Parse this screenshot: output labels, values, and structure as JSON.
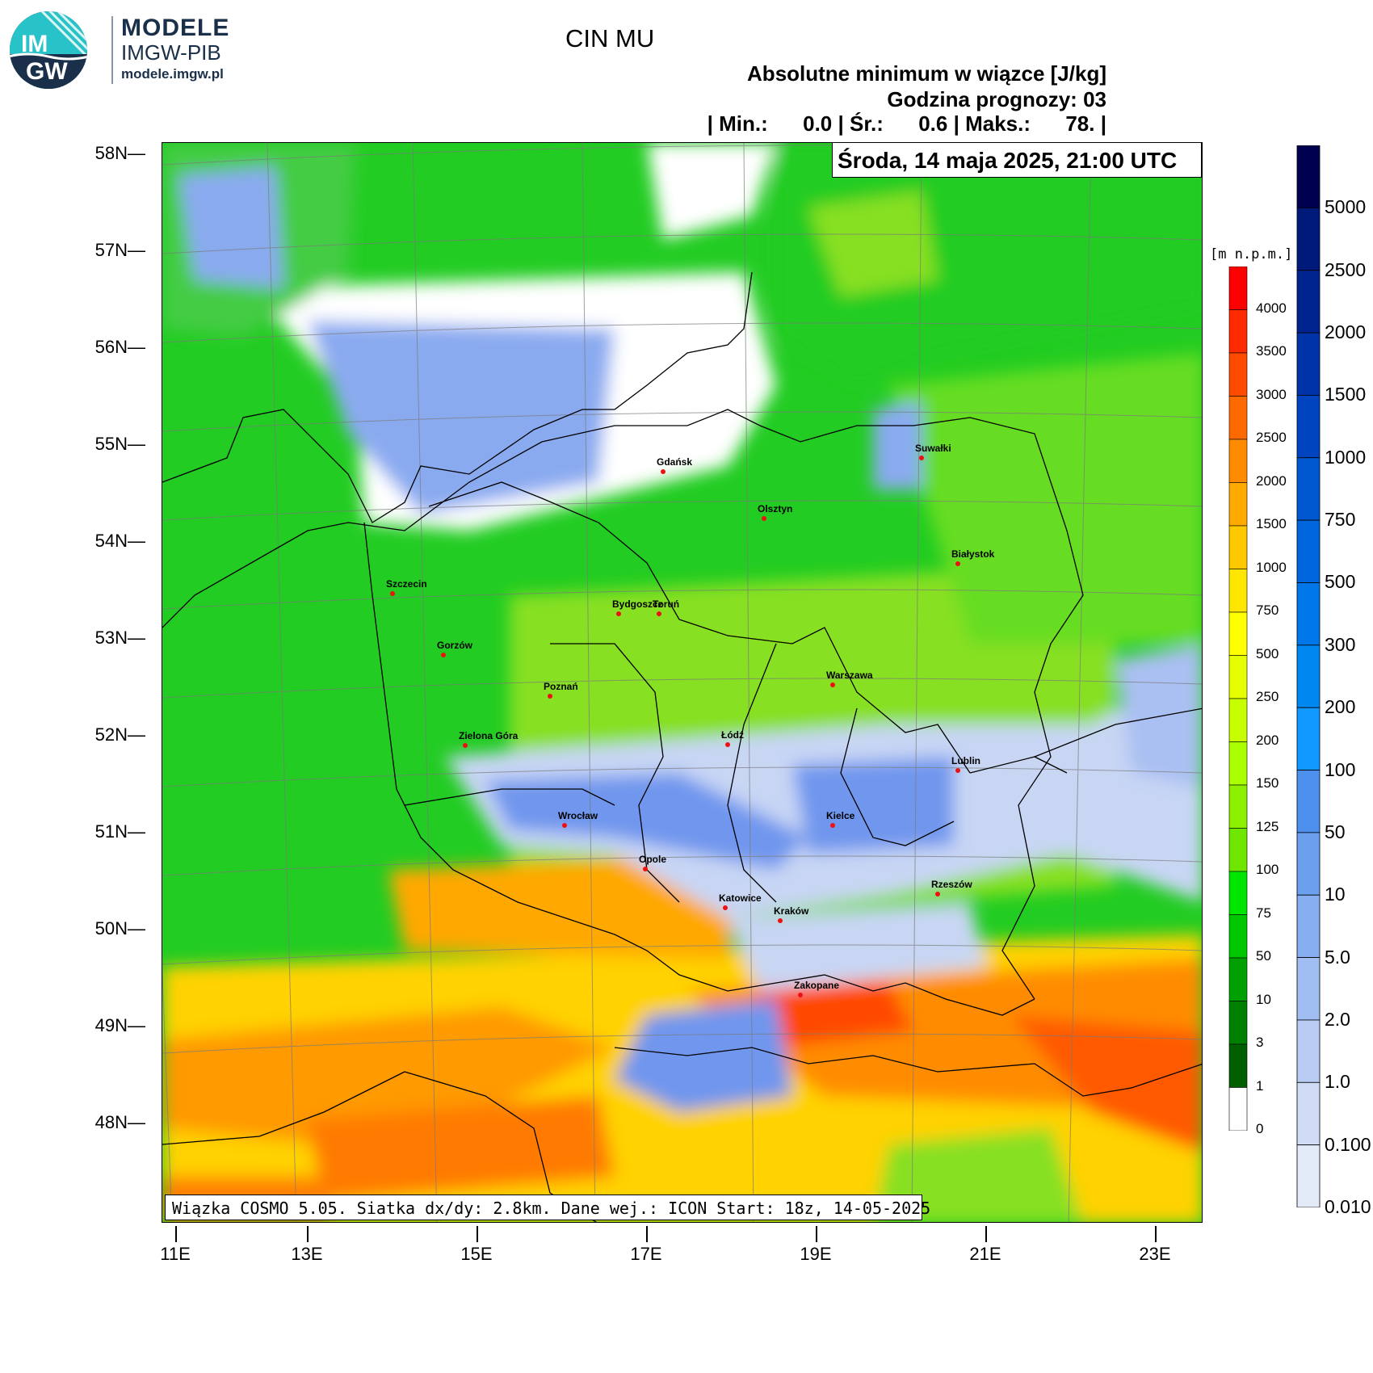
{
  "brand": {
    "logo_text": "IM GW",
    "name": "MODELE",
    "org": "IMGW-PIB",
    "url": "modele.imgw.pl"
  },
  "header": {
    "title": "CIN MU",
    "subtitle": "Absolutne minimum w wiązce [J/kg]",
    "forecast_hour": "Godzina prognozy: 03",
    "stats": "| Min.:      0.0 | Śr.:      0.6 | Maks.:      78. |",
    "valid_time": "Środa, 14 maja 2025, 21:00 UTC"
  },
  "footer": {
    "model_info": "Wiązka COSMO 5.05. Siatka dx/dy: 2.8km. Dane wej.: ICON Start: 18z, 14-05-2025"
  },
  "axes": {
    "lat_labels": [
      "58N",
      "57N",
      "56N",
      "55N",
      "54N",
      "53N",
      "52N",
      "51N",
      "50N",
      "49N",
      "48N"
    ],
    "lon_labels": [
      "11E",
      "13E",
      "15E",
      "17E",
      "19E",
      "21E",
      "23E"
    ]
  },
  "altitude_scale": {
    "unit_label": "[m n.p.m.]",
    "labels": [
      "4000",
      "3500",
      "3000",
      "2500",
      "2000",
      "1500",
      "1000",
      "750",
      "500",
      "250",
      "200",
      "150",
      "125",
      "100",
      "75",
      "50",
      "10",
      "3",
      "1",
      "0"
    ],
    "colors": [
      "#ff0000",
      "#ff2a00",
      "#ff4a00",
      "#ff6a00",
      "#ff8c00",
      "#ffaa00",
      "#ffc800",
      "#ffe600",
      "#ffff00",
      "#e6ff00",
      "#c8ff00",
      "#aaff00",
      "#8cf000",
      "#6ee600",
      "#00e600",
      "#00c800",
      "#00a000",
      "#008000",
      "#006000",
      "#ffffff"
    ]
  },
  "cin_scale": {
    "labels": [
      "5000",
      "2500",
      "2000",
      "1500",
      "1000",
      "750",
      "500",
      "300",
      "200",
      "100",
      "50",
      "10",
      "5.0",
      "2.0",
      "1.0",
      "0.100",
      "0.010"
    ],
    "colors": [
      "#000050",
      "#001a7a",
      "#00248f",
      "#0033a8",
      "#0044c0",
      "#0058d0",
      "#0066dd",
      "#0077e8",
      "#0088f0",
      "#1199ff",
      "#4d90ee",
      "#6aa0ee",
      "#86aef0",
      "#a0bef2",
      "#b8ccf4",
      "#d0dcf6",
      "#e4ebf8"
    ]
  },
  "cities": [
    {
      "name": "Gdańsk"
    },
    {
      "name": "Olsztyn"
    },
    {
      "name": "Suwałki"
    },
    {
      "name": "Białystok"
    },
    {
      "name": "Szczecin"
    },
    {
      "name": "Bydgoszcz"
    },
    {
      "name": "Toruń"
    },
    {
      "name": "Gorzów"
    },
    {
      "name": "Poznań"
    },
    {
      "name": "Warszawa"
    },
    {
      "name": "Zielona Góra"
    },
    {
      "name": "Łódź"
    },
    {
      "name": "Lublin"
    },
    {
      "name": "Wrocław"
    },
    {
      "name": "Kielce"
    },
    {
      "name": "Opole"
    },
    {
      "name": "Rzeszów"
    },
    {
      "name": "Katowice"
    },
    {
      "name": "Kraków"
    },
    {
      "name": "Zakopane"
    }
  ]
}
